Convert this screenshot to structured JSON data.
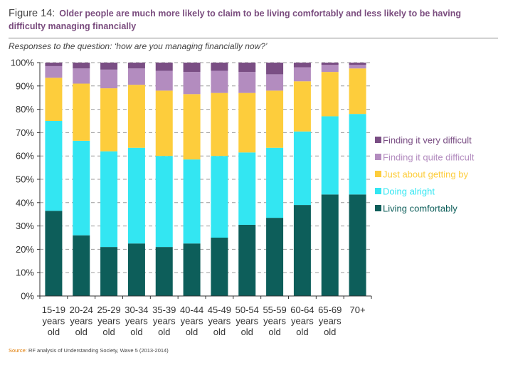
{
  "figure": {
    "number": "Figure 14:",
    "headline": "Older people are much more likely to claim to be living comfortably and less likely to be having difficulty managing financially",
    "subtitle": "Responses to the question: ‘how are you managing financially now?’"
  },
  "source": {
    "label": "Source:",
    "text": "RF analysis of Understanding Society, Wave 5 (2013-2014)"
  },
  "colors": {
    "living_comfortably": "#0d5e5a",
    "doing_alright": "#33e6f2",
    "just_about_getting_by": "#fdcd3c",
    "finding_quite_difficult": "#b38cbf",
    "finding_very_difficult": "#7a4e84"
  },
  "chart_data": {
    "type": "bar",
    "stacked": true,
    "categories": [
      [
        "15-19",
        "years",
        "old"
      ],
      [
        "20-24",
        "years",
        "old"
      ],
      [
        "25-29",
        "years",
        "old"
      ],
      [
        "30-34",
        "years",
        "old"
      ],
      [
        "35-39",
        "years",
        "old"
      ],
      [
        "40-44",
        "years",
        "old"
      ],
      [
        "45-49",
        "years",
        "old"
      ],
      [
        "50-54",
        "years",
        "old"
      ],
      [
        "55-59",
        "years",
        "old"
      ],
      [
        "60-64",
        "years",
        "old"
      ],
      [
        "65-69",
        "years",
        "old"
      ],
      [
        "70+"
      ]
    ],
    "series": [
      {
        "name": "Living comfortably",
        "color": "#0d5e5a",
        "values": [
          36.5,
          26,
          21,
          22.5,
          21,
          22.5,
          25,
          30.5,
          33.5,
          39,
          43.5,
          43.5
        ]
      },
      {
        "name": "Doing alright",
        "color": "#33e6f2",
        "values": [
          38.5,
          40.5,
          41,
          41,
          39,
          36,
          35,
          31,
          30,
          31.5,
          33.5,
          34.5
        ]
      },
      {
        "name": "Just about getting by",
        "color": "#fdcd3c",
        "values": [
          18.5,
          24.5,
          27,
          27,
          28,
          28,
          27,
          25.5,
          24.5,
          21.5,
          19,
          19.5
        ]
      },
      {
        "name": "Finding it quite difficult",
        "color": "#b38cbf",
        "values": [
          5,
          6.5,
          8,
          7,
          8.5,
          9.5,
          9.5,
          9,
          7,
          6,
          3,
          1.5
        ]
      },
      {
        "name": "Finding it very difficult",
        "color": "#7a4e84",
        "values": [
          1.5,
          2.5,
          3,
          2.5,
          3.5,
          4,
          3.5,
          4,
          5,
          2,
          1,
          1
        ]
      }
    ],
    "yticks": [
      "0%",
      "10%",
      "20%",
      "30%",
      "40%",
      "50%",
      "60%",
      "70%",
      "80%",
      "90%",
      "100%"
    ],
    "ylim": [
      0,
      100
    ],
    "grid": "dashed horizontal",
    "legend_order": [
      "Finding it very difficult",
      "Finding it quite difficult",
      "Just about getting by",
      "Doing alright",
      "Living comfortably"
    ],
    "legend_position": "right",
    "title": "",
    "xlabel": "",
    "ylabel": ""
  }
}
